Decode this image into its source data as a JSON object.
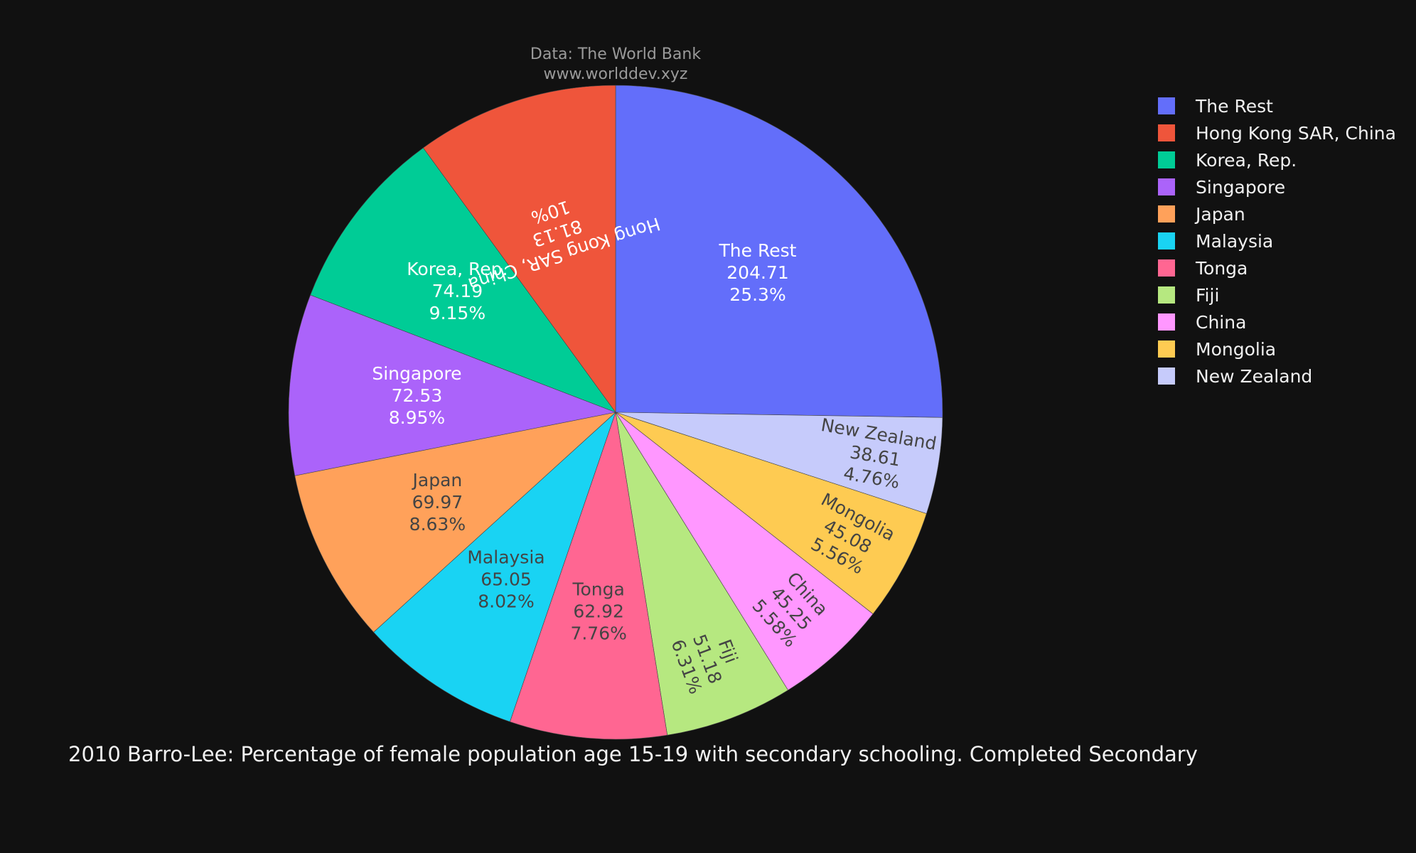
{
  "source": {
    "line1": "Data: The World Bank",
    "line2": "www.worlddev.xyz"
  },
  "chart_data": {
    "type": "pie",
    "title": "2010 Barro-Lee: Percentage of female population age 15-19 with secondary schooling. Completed Secondary",
    "legend_position": "right",
    "direction": "clockwise",
    "slices": [
      {
        "label": "The Rest",
        "value": 204.71,
        "percent": "25.3%",
        "color": "#636efa"
      },
      {
        "label": "New Zealand",
        "value": 38.61,
        "percent": "4.76%",
        "color": "#c6cbfb"
      },
      {
        "label": "Mongolia",
        "value": 45.08,
        "percent": "5.56%",
        "color": "#fecb52"
      },
      {
        "label": "China",
        "value": 45.25,
        "percent": "5.58%",
        "color": "#ff97ff"
      },
      {
        "label": "Fiji",
        "value": 51.18,
        "percent": "6.31%",
        "color": "#b6e880"
      },
      {
        "label": "Tonga",
        "value": 62.92,
        "percent": "7.76%",
        "color": "#ff6692"
      },
      {
        "label": "Malaysia",
        "value": 65.05,
        "percent": "8.02%",
        "color": "#19d3f3"
      },
      {
        "label": "Japan",
        "value": 69.97,
        "percent": "8.63%",
        "color": "#ffa15a"
      },
      {
        "label": "Singapore",
        "value": 72.53,
        "percent": "8.95%",
        "color": "#ab63fa"
      },
      {
        "label": "Korea, Rep.",
        "value": 74.19,
        "percent": "9.15%",
        "color": "#00cc96"
      },
      {
        "label": "Hong Kong SAR, China",
        "value": 81.13,
        "percent": "10%",
        "color": "#ef553b"
      }
    ],
    "legend": [
      "The Rest",
      "Hong Kong SAR, China",
      "Korea, Rep.",
      "Singapore",
      "Japan",
      "Malaysia",
      "Tonga",
      "Fiji",
      "China",
      "Mongolia",
      "New Zealand"
    ]
  }
}
